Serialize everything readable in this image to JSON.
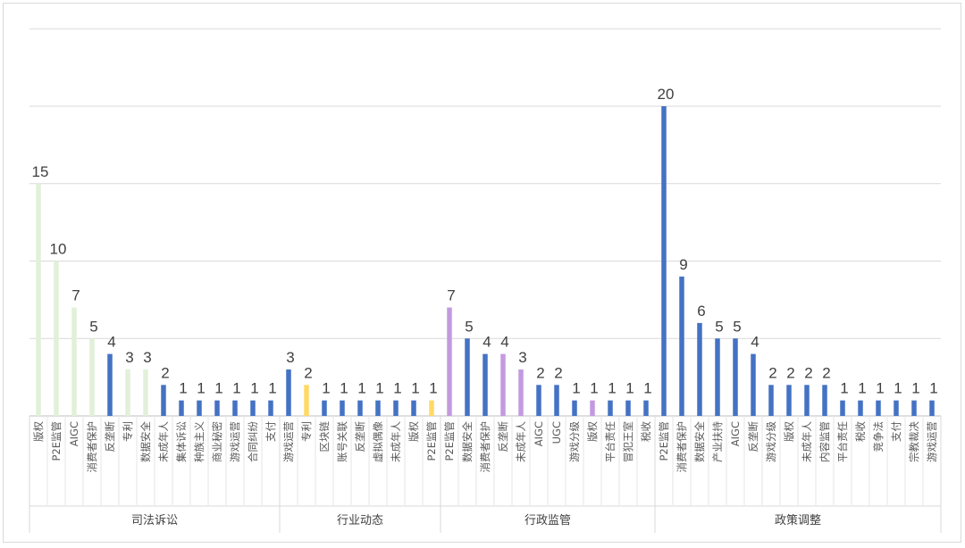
{
  "chart_data": {
    "type": "bar",
    "title": "",
    "xlabel": "",
    "ylabel": "",
    "ylim": [
      0,
      25
    ],
    "grid": true,
    "legend": "none",
    "groups": [
      {
        "name": "司法诉讼",
        "bars": [
          {
            "label": "版权",
            "value": 15,
            "color": "#e2f0d9"
          },
          {
            "label": "P2E监管",
            "value": 10,
            "color": "#e2f0d9"
          },
          {
            "label": "AIGC",
            "value": 7,
            "color": "#e2f0d9"
          },
          {
            "label": "消费者保护",
            "value": 5,
            "color": "#e2f0d9"
          },
          {
            "label": "反垄断",
            "value": 4,
            "color": "#4472c4"
          },
          {
            "label": "专利",
            "value": 3,
            "color": "#e2f0d9"
          },
          {
            "label": "数据安全",
            "value": 3,
            "color": "#e2f0d9"
          },
          {
            "label": "未成年人",
            "value": 2,
            "color": "#4472c4"
          },
          {
            "label": "集体诉讼",
            "value": 1,
            "color": "#4472c4"
          },
          {
            "label": "种族主义",
            "value": 1,
            "color": "#4472c4"
          },
          {
            "label": "商业秘密",
            "value": 1,
            "color": "#4472c4"
          },
          {
            "label": "游戏运营",
            "value": 1,
            "color": "#4472c4"
          },
          {
            "label": "合同纠纷",
            "value": 1,
            "color": "#4472c4"
          },
          {
            "label": "支付",
            "value": 1,
            "color": "#4472c4"
          }
        ]
      },
      {
        "name": "行业动态",
        "bars": [
          {
            "label": "游戏运营",
            "value": 3,
            "color": "#4472c4"
          },
          {
            "label": "专利",
            "value": 2,
            "color": "#ffd966"
          },
          {
            "label": "区块链",
            "value": 1,
            "color": "#4472c4"
          },
          {
            "label": "账号关联",
            "value": 1,
            "color": "#4472c4"
          },
          {
            "label": "反垄断",
            "value": 1,
            "color": "#4472c4"
          },
          {
            "label": "虚拟偶像",
            "value": 1,
            "color": "#4472c4"
          },
          {
            "label": "未成年人",
            "value": 1,
            "color": "#4472c4"
          },
          {
            "label": "版权",
            "value": 1,
            "color": "#4472c4"
          },
          {
            "label": "P2E监管",
            "value": 1,
            "color": "#ffd966"
          }
        ]
      },
      {
        "name": "行政监管",
        "bars": [
          {
            "label": "P2E监管",
            "value": 7,
            "color": "#c39ae0"
          },
          {
            "label": "数据安全",
            "value": 5,
            "color": "#4472c4"
          },
          {
            "label": "消费者保护",
            "value": 4,
            "color": "#4472c4"
          },
          {
            "label": "反垄断",
            "value": 4,
            "color": "#c39ae0"
          },
          {
            "label": "未成年人",
            "value": 3,
            "color": "#c39ae0"
          },
          {
            "label": "AIGC",
            "value": 2,
            "color": "#4472c4"
          },
          {
            "label": "UGC",
            "value": 2,
            "color": "#4472c4"
          },
          {
            "label": "游戏分级",
            "value": 1,
            "color": "#4472c4"
          },
          {
            "label": "版权",
            "value": 1,
            "color": "#c39ae0"
          },
          {
            "label": "平台责任",
            "value": 1,
            "color": "#4472c4"
          },
          {
            "label": "冒犯王室",
            "value": 1,
            "color": "#4472c4"
          },
          {
            "label": "税收",
            "value": 1,
            "color": "#4472c4"
          }
        ]
      },
      {
        "name": "政策调整",
        "bars": [
          {
            "label": "P2E监管",
            "value": 20,
            "color": "#4472c4"
          },
          {
            "label": "消费者保护",
            "value": 9,
            "color": "#4472c4"
          },
          {
            "label": "数据安全",
            "value": 6,
            "color": "#4472c4"
          },
          {
            "label": "产业扶持",
            "value": 5,
            "color": "#4472c4"
          },
          {
            "label": "AIGC",
            "value": 5,
            "color": "#4472c4"
          },
          {
            "label": "反垄断",
            "value": 4,
            "color": "#4472c4"
          },
          {
            "label": "游戏分级",
            "value": 2,
            "color": "#4472c4"
          },
          {
            "label": "版权",
            "value": 2,
            "color": "#4472c4"
          },
          {
            "label": "未成年人",
            "value": 2,
            "color": "#4472c4"
          },
          {
            "label": "内容监管",
            "value": 2,
            "color": "#4472c4"
          },
          {
            "label": "平台责任",
            "value": 1,
            "color": "#4472c4"
          },
          {
            "label": "税收",
            "value": 1,
            "color": "#4472c4"
          },
          {
            "label": "竞争法",
            "value": 1,
            "color": "#4472c4"
          },
          {
            "label": "支付",
            "value": 1,
            "color": "#4472c4"
          },
          {
            "label": "宗教裁决",
            "value": 1,
            "color": "#4472c4"
          },
          {
            "label": "游戏运营",
            "value": 1,
            "color": "#4472c4"
          }
        ]
      }
    ]
  }
}
